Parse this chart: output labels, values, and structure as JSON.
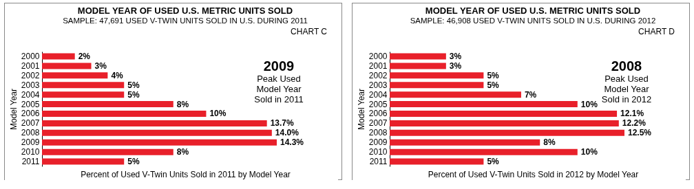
{
  "chart_data": [
    {
      "type": "bar",
      "orientation": "horizontal",
      "title": "MODEL YEAR OF USED U.S. METRIC UNITS SOLD",
      "subtitle": "SAMPLE:  47,691 USED V-TWIN UNITS SOLD IN U.S. DURING 2011",
      "xlabel": "Percent of Used V-Twin Units Sold in 2011 by Model Year",
      "ylabel": "Model Year",
      "annotations": [
        "CHART C",
        "2009",
        "Peak Used Model Year Sold in 2011"
      ],
      "categories": [
        "2000",
        "2001",
        "2002",
        "2003",
        "2004",
        "2005",
        "2006",
        "2007",
        "2008",
        "2009",
        "2010",
        "2011"
      ],
      "color": "#e8202a",
      "values": [
        2,
        3,
        4,
        5,
        5,
        8,
        10,
        13.7,
        14.0,
        14.3,
        8,
        5
      ],
      "value_labels": [
        "2%",
        "3%",
        "4%",
        "5%",
        "5%",
        "8%",
        "10%",
        "13.7%",
        "14.0%",
        "14.3%",
        "8%",
        "5%"
      ],
      "grid": false
    },
    {
      "type": "bar",
      "orientation": "horizontal",
      "title": "MODEL YEAR OF USED U.S. METRIC UNITS SOLD",
      "subtitle": "SAMPLE:  46,908 USED V-TWIN UNITS SOLD IN U.S. DURING 2012",
      "xlabel": "Percent of Used V-Twin Units Sold in 2012 by Model Year",
      "ylabel": "Model Year",
      "annotations": [
        "CHART D",
        "2008",
        "Peak Used Model Year Sold in 2012"
      ],
      "categories": [
        "2000",
        "2001",
        "2002",
        "2003",
        "2004",
        "2005",
        "2006",
        "2007",
        "2008",
        "2009",
        "2010",
        "2011"
      ],
      "color": "#e8202a",
      "values": [
        3,
        3,
        5,
        5,
        7,
        10,
        12.1,
        12.2,
        12.5,
        8,
        10,
        5
      ],
      "value_labels": [
        "3%",
        "3%",
        "5%",
        "5%",
        "7%",
        "10%",
        "12.1%",
        "12.2%",
        "12.5%",
        "8%",
        "10%",
        "5%"
      ],
      "grid": false
    }
  ]
}
